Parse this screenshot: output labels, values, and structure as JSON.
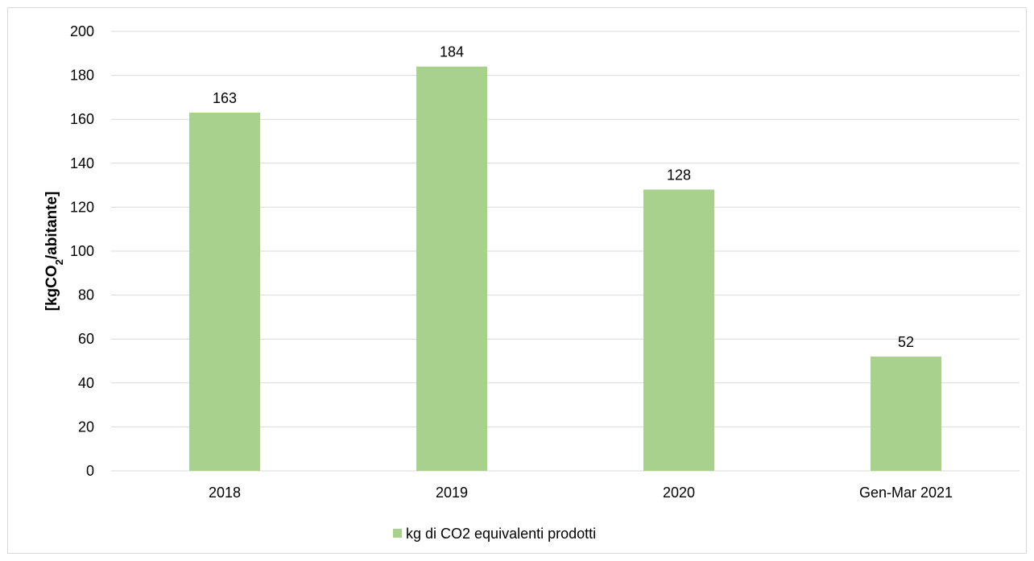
{
  "chart_data": {
    "type": "bar",
    "categories": [
      "2018",
      "2019",
      "2020",
      "Gen-Mar 2021"
    ],
    "series": [
      {
        "name": "kg di CO2 equivalenti prodotti",
        "values": [
          163,
          184,
          128,
          52
        ],
        "labels": [
          "163",
          "184",
          "128",
          "52"
        ],
        "color": "#a9d18e"
      }
    ],
    "ylabel": {
      "prefix": "[kgCO",
      "subscript": "2",
      "suffix": "/abitante]"
    },
    "ylim": [
      0,
      200
    ],
    "yticks": [
      "0",
      "20",
      "40",
      "60",
      "80",
      "100",
      "120",
      "140",
      "160",
      "180",
      "200"
    ],
    "grid": true,
    "gridline_color": "#d9d9d9",
    "legend_position": "bottom"
  }
}
